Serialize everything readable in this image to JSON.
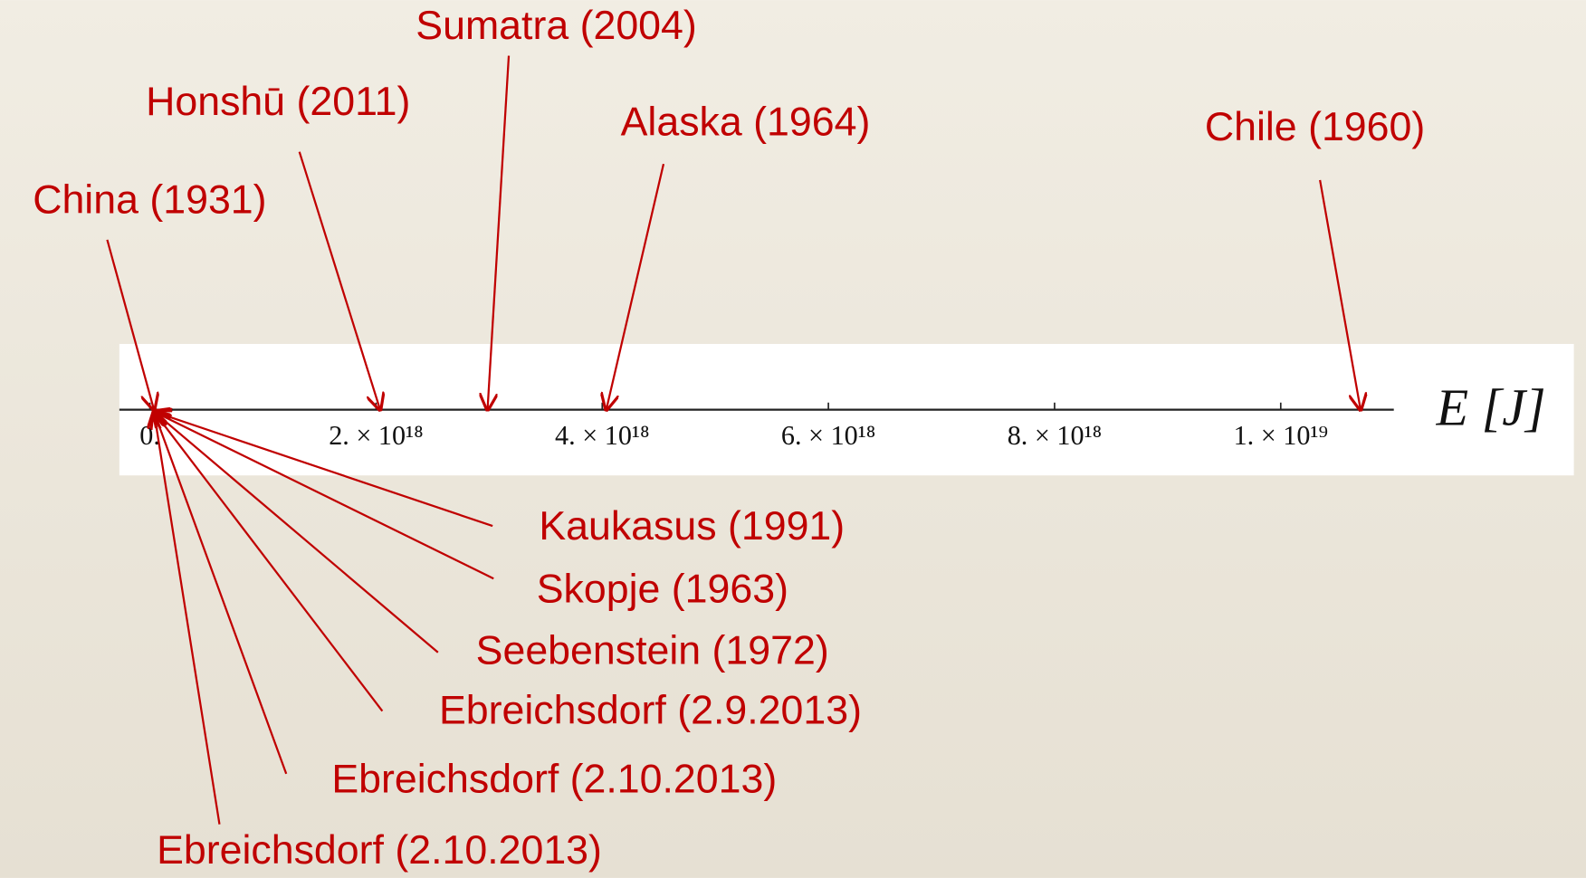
{
  "chart_data": {
    "type": "numberline",
    "axis_label": "E [J]",
    "xlim": [
      -270000000000000000,
      11000000000000000000
    ],
    "xticks": [
      {
        "value": 0,
        "label": "0."
      },
      {
        "value": 2000000000000000000,
        "label": "2. × 10¹⁸"
      },
      {
        "value": 4000000000000000000,
        "label": "4. × 10¹⁸"
      },
      {
        "value": 6000000000000000000,
        "label": "6. × 10¹⁸"
      },
      {
        "value": 8000000000000000000,
        "label": "8. × 10¹⁸"
      },
      {
        "value": 10000000000000000000,
        "label": "1. × 10¹⁹"
      }
    ],
    "color": "#c00000",
    "annotations": [
      {
        "label": "Sumatra (2004)",
        "x": 2950000000000000000
      },
      {
        "label": "Honshū (2011)",
        "x": 2000000000000000000
      },
      {
        "label": "Alaska (1964)",
        "x": 4000000000000000000
      },
      {
        "label": "Chile (1960)",
        "x": 10670000000000000000
      },
      {
        "label": "China (1931)",
        "x": 0
      },
      {
        "label": "Kaukasus (1991)",
        "x": 0
      },
      {
        "label": "Skopje (1963)",
        "x": 0
      },
      {
        "label": "Seebenstein (1972)",
        "x": 0
      },
      {
        "label": "Ebreichsdorf (2.9.2013)",
        "x": 0
      },
      {
        "label": "Ebreichsdorf (2.10.2013)",
        "x": 0
      },
      {
        "label": "Ebreichsdorf (2.10.2013)",
        "x": 0
      }
    ]
  }
}
